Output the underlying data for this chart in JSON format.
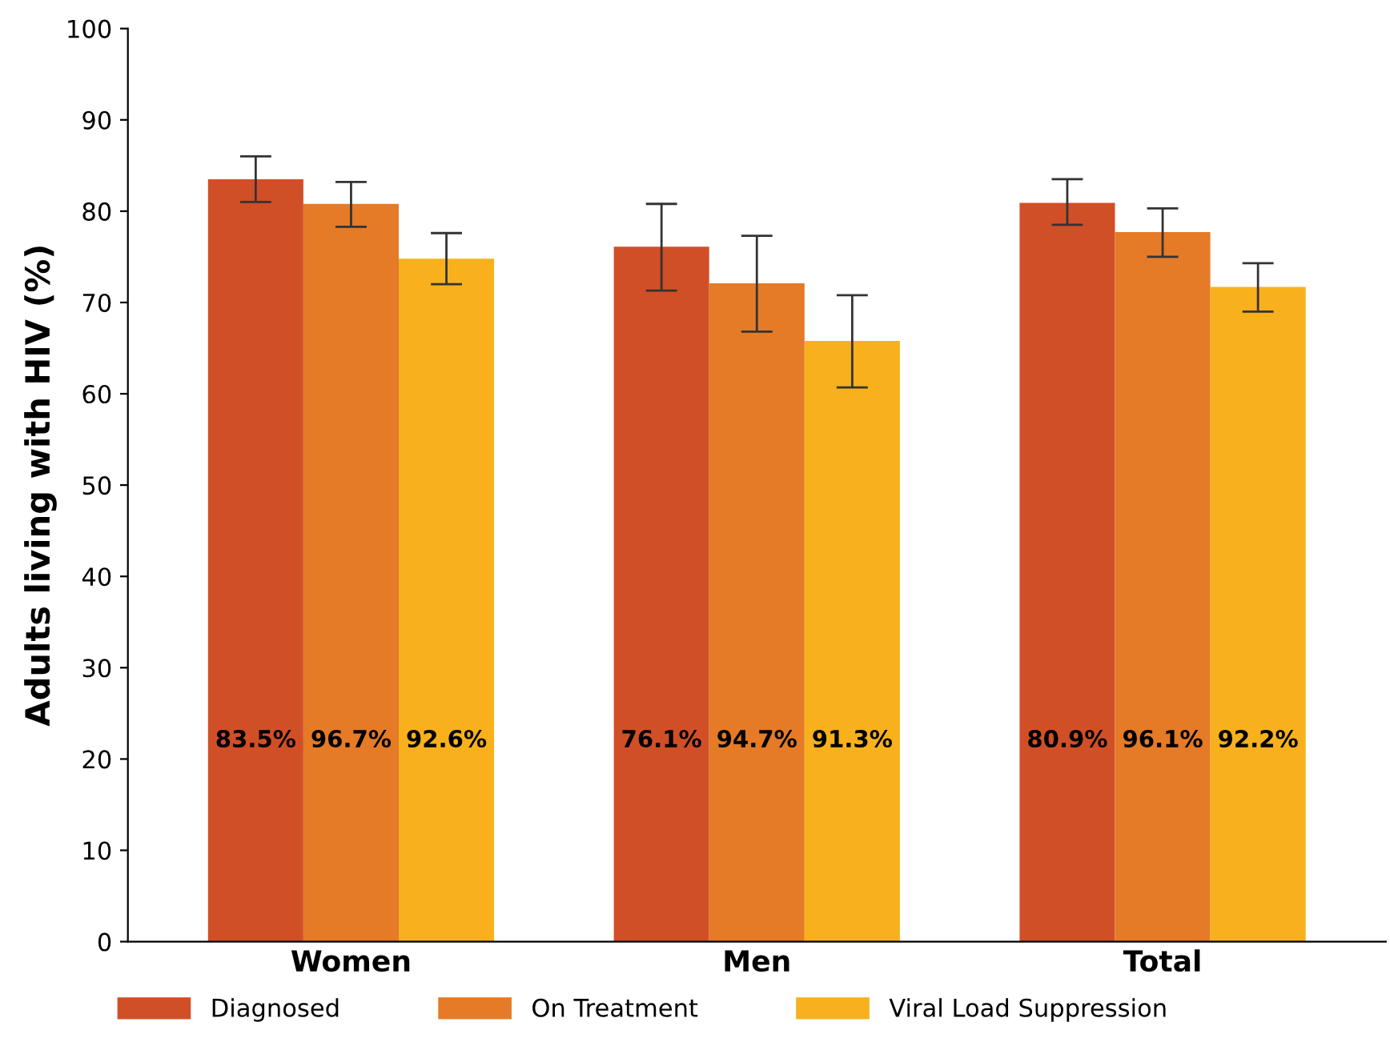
{
  "chart_data": {
    "type": "bar",
    "categories": [
      "Women",
      "Men",
      "Total"
    ],
    "ylabel": "Adults living with HIV (%)",
    "series": [
      {
        "name": "Diagnosed",
        "color": "#d14f27",
        "values": [
          83.5,
          76.1,
          80.9
        ],
        "errors": [
          [
            81.0,
            86.0
          ],
          [
            71.3,
            80.8
          ],
          [
            78.5,
            83.5
          ]
        ],
        "value_labels": [
          "83.5%",
          "76.1%",
          "80.9%"
        ]
      },
      {
        "name": "On Treatment",
        "color": "#e57a27",
        "values": [
          80.8,
          72.1,
          77.7
        ],
        "errors": [
          [
            78.3,
            83.2
          ],
          [
            66.8,
            77.3
          ],
          [
            75.0,
            80.3
          ]
        ]
      },
      {
        "name": "Viral Load Suppression",
        "color": "#f8b11c",
        "values": [
          74.8,
          65.8,
          71.7
        ],
        "errors": [
          [
            72.0,
            77.6
          ],
          [
            60.7,
            70.8
          ],
          [
            69.0,
            74.3
          ]
        ]
      }
    ],
    "annotations": [
      "96.7%",
      "92.6%",
      "94.7%",
      "91.3%",
      "96.1%",
      "92.2%"
    ],
    "ylim": [
      0,
      100
    ],
    "yticks": [
      0,
      10,
      20,
      30,
      40,
      50,
      60,
      70,
      80,
      90,
      100
    ],
    "grid": false,
    "legend": "bottom"
  }
}
